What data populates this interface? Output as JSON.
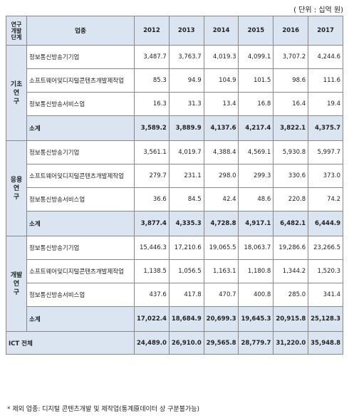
{
  "unit": "( 단위 : 십억 원)",
  "header": {
    "category": "연구\n개발\n단계",
    "industry": "업종",
    "years": [
      "2012",
      "2013",
      "2014",
      "2015",
      "2016",
      "2017"
    ]
  },
  "groups": [
    {
      "name": "기초연\n구",
      "rows": [
        {
          "industry": "정보통신방송기기업",
          "values": [
            "3,487.7",
            "3,763.7",
            "4,019.3",
            "4,099.1",
            "3,707.2",
            "4,244.6"
          ]
        },
        {
          "industry": "소프트웨어및디지털콘텐츠개발제작업",
          "values": [
            "85.3",
            "94.9",
            "104.9",
            "101.5",
            "98.6",
            "111.6"
          ]
        },
        {
          "industry": "정보통신방송서비스업",
          "values": [
            "16.3",
            "31.3",
            "13.4",
            "16.8",
            "16.4",
            "19.4"
          ]
        }
      ],
      "subtotal_label": "소계",
      "subtotal": [
        "3,589.2",
        "3,889.9",
        "4,137.6",
        "4,217.4",
        "3,822.1",
        "4,375.7"
      ]
    },
    {
      "name": "응용연\n구",
      "rows": [
        {
          "industry": "정보통신방송기기업",
          "values": [
            "3,561.1",
            "4,019.7",
            "4,388.4",
            "4,569.1",
            "5,930.8",
            "5,997.7"
          ]
        },
        {
          "industry": "소프트웨어및디지털콘텐츠개발제작업",
          "values": [
            "279.7",
            "231.1",
            "298.0",
            "299.3",
            "330.6",
            "373.0"
          ]
        },
        {
          "industry": "정보통신방송서비스업",
          "values": [
            "36.6",
            "84.5",
            "42.4",
            "48.6",
            "220.8",
            "74.2"
          ]
        }
      ],
      "subtotal_label": "소계",
      "subtotal": [
        "3,877.4",
        "4,335.3",
        "4,728.8",
        "4,917.1",
        "6,482.1",
        "6,444.9"
      ]
    },
    {
      "name": "개발연\n구",
      "rows": [
        {
          "industry": "정보통신방송기기업",
          "values": [
            "15,446.3",
            "17,210.6",
            "19,065.5",
            "18,063.7",
            "19,286.6",
            "23,266.5"
          ]
        },
        {
          "industry": "소프트웨어및디지털콘텐츠개발제작업",
          "values": [
            "1,138.5",
            "1,056.5",
            "1,163.1",
            "1,180.8",
            "1,344.2",
            "1,520.3"
          ]
        },
        {
          "industry": "정보통신방송서비스업",
          "values": [
            "437.6",
            "417.8",
            "470.7",
            "400.8",
            "285.0",
            "341.4"
          ]
        }
      ],
      "subtotal_label": "소계",
      "subtotal": [
        "17,022.4",
        "18,684.9",
        "20,699.3",
        "19,645.3",
        "20,915.8",
        "25,128.3"
      ]
    }
  ],
  "total": {
    "label": "ICT 전체",
    "values": [
      "24,489.0",
      "26,910.0",
      "29,565.8",
      "28,779.7",
      "31,220.0",
      "35,948.8"
    ]
  },
  "note": "* 제외 업종: 디지털 콘텐츠개발 및 제작업(통계原데이터 상 구분불가능)"
}
